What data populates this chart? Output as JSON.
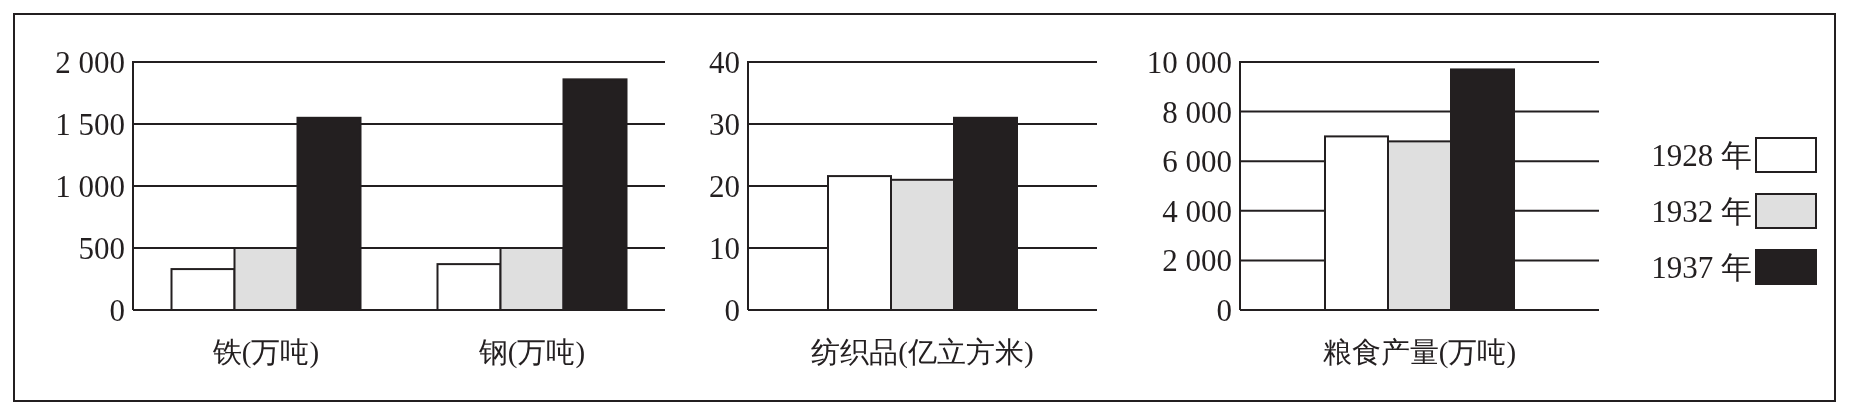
{
  "chart_data": [
    {
      "type": "bar",
      "categories": [
        "铁(万吨)",
        "钢(万吨)"
      ],
      "series": [
        {
          "color": "#ffffff",
          "values": [
            330,
            370
          ]
        },
        {
          "color": "#dfdfdf",
          "values": [
            500,
            500
          ]
        },
        {
          "color": "#231f20",
          "values": [
            1550,
            1860
          ]
        }
      ],
      "ylim": [
        0,
        2000
      ],
      "yticks": [
        0,
        500,
        {
          "value": 1000,
          "label": "1 000"
        },
        {
          "value": 1500,
          "label": "1 500"
        },
        {
          "value": 2000,
          "label": "2 000"
        }
      ],
      "grid": "y"
    },
    {
      "type": "bar",
      "categories": [
        "纺织品(亿立方米)"
      ],
      "series": [
        {
          "color": "#ffffff",
          "values": [
            21.6
          ]
        },
        {
          "color": "#dfdfdf",
          "values": [
            21
          ]
        },
        {
          "color": "#231f20",
          "values": [
            31
          ]
        }
      ],
      "ylim": [
        0,
        40
      ],
      "yticks": [
        0,
        10,
        20,
        30,
        40
      ],
      "grid": "y"
    },
    {
      "type": "bar",
      "categories": [
        "粮食产量(万吨)"
      ],
      "series": [
        {
          "name": "1928 年",
          "color": "#ffffff",
          "values": [
            7000
          ]
        },
        {
          "name": "1932 年",
          "color": "#dfdfdf",
          "values": [
            6800
          ]
        },
        {
          "name": "1937 年",
          "color": "#231f20",
          "values": [
            9700
          ]
        }
      ],
      "ylim": [
        0,
        10000
      ],
      "yticks": [
        0,
        {
          "value": 2000,
          "label": "2 000"
        },
        {
          "value": 4000,
          "label": "4 000"
        },
        {
          "value": 6000,
          "label": "6 000"
        },
        {
          "value": 8000,
          "label": "8 000"
        },
        {
          "value": 10000,
          "label": "10 000"
        }
      ],
      "grid": "y",
      "legend": "right"
    }
  ]
}
